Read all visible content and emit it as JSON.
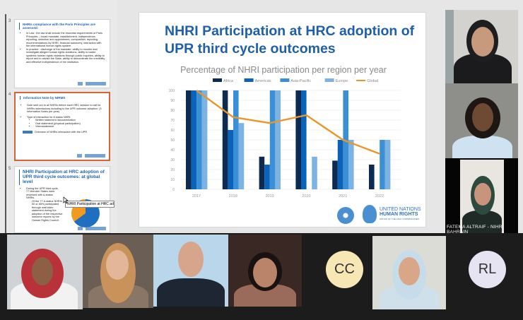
{
  "thumbnails": [
    {
      "number": "3",
      "title": "NHRIs compliance with the Paris Principles are assessed:",
      "bullets": [
        "In Law : the law shall include the essential requirements of Paris Principles – broad mandate, establishment, independence, reporting, selection and appointment, composition, reporting, recommendations by NHRI, financial autonomy, interaction with the international human rights system.",
        "In practice : discharge of the mandate, ability to monitor and investigate alleged human rights violations, ability to tackle systemic human rights violations through public inquiries, ability to report and to advise the State, ability to demonstrate the credibility and effective independence of the institution."
      ]
    },
    {
      "number": "4",
      "title": "Information Note by NIRMS",
      "bullets": [
        "Note sent out to all NHRIs before each HRC session to call for NHRIs submissions including to the UPR outcome adoption. (3 Information Notes per year)",
        "Type of interaction for A status NHRI:"
      ],
      "sub_bullets": [
        "Written statement /documentation",
        "Oral statement (physical participation)",
        "Videostatement"
      ],
      "arrow_text": "Overview of NHRIs interaction with the UPR"
    },
    {
      "number": "5",
      "title": "NHRI Participation at HRC adoption of UPR third cycle outcomes: at global level",
      "bullets": [
        "During the UPR third cycle, 77 Member States were reviewed with A-status NHRIs."
      ],
      "sub_text": "Of the 77 A-status NHRIs, 50 or 65% participated through oral/video statement during the adoption of the respective outcome reports by the Human Rights Council.",
      "tooltip": "NHRI Participation at HRC adoption of UPR third cycle outcomes"
    }
  ],
  "slide": {
    "title": "NHRI Participation at HRC adoption of UPR third cycle outcomes",
    "logo_un": "UNITED NATIONS",
    "logo_ohchr": [
      "UNITED NATIONS",
      "HUMAN RIGHTS",
      "OFFICE OF THE HIGH COMMISSIONER"
    ]
  },
  "chart_data": {
    "type": "bar",
    "title": "Percentage of NHRI participation per region per year",
    "categories": [
      "2017",
      "2018",
      "2019",
      "2020",
      "2021",
      "2022"
    ],
    "series": [
      {
        "name": "Africa",
        "values": [
          100,
          100,
          33,
          100,
          29,
          25
        ],
        "color": "#0d2a50"
      },
      {
        "name": "Americas",
        "values": [
          100,
          60,
          25,
          100,
          50,
          0
        ],
        "color": "#0a63b8"
      },
      {
        "name": "Asia-Pacific",
        "values": [
          100,
          100,
          100,
          0,
          100,
          50
        ],
        "color": "#3b8fd6"
      },
      {
        "name": "Europe",
        "values": [
          100,
          67,
          100,
          33,
          50,
          50
        ],
        "color": "#7db3e3"
      }
    ],
    "line_series": {
      "name": "Global",
      "type": "line",
      "values": [
        100,
        73,
        67,
        75,
        50,
        36
      ],
      "color": "#e8962a"
    },
    "ylim": [
      0,
      100
    ],
    "yticks": [
      0,
      10,
      20,
      30,
      40,
      50,
      60,
      70,
      80,
      90,
      100
    ],
    "grid": true,
    "legend": "top"
  },
  "participants": {
    "right": [
      {
        "name": ""
      },
      {
        "name": ""
      },
      {
        "name": "FATEMA ALTRAIF - NIHR BAHRAIN"
      }
    ],
    "bottom_avatars": [
      {
        "initials": "CC",
        "color": "#f6e7b4"
      },
      {
        "initials": "RL",
        "color": "#e6e4f2"
      }
    ]
  }
}
